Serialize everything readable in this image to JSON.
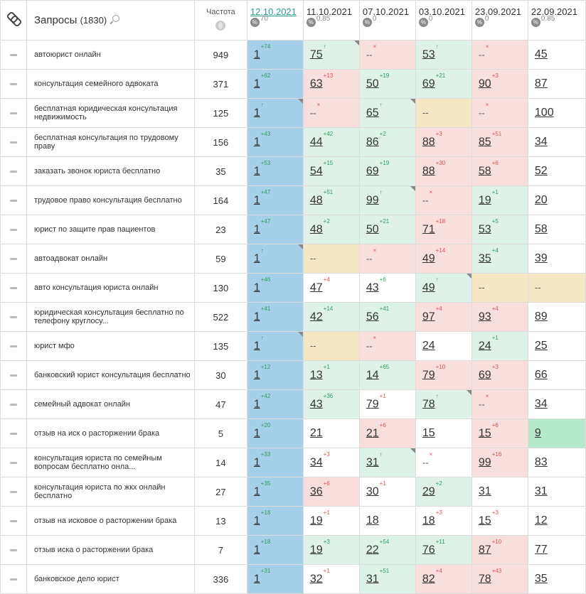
{
  "header": {
    "title": "Запросы",
    "count": "(1830)",
    "freq_label": "Частота",
    "dates": [
      {
        "label": "12.10.2021",
        "sub": "70",
        "active": true
      },
      {
        "label": "11.10.2021",
        "sub": "0.85"
      },
      {
        "label": "07.10.2021",
        "sub": "0"
      },
      {
        "label": "03.10.2021",
        "sub": "0"
      },
      {
        "label": "23.09.2021",
        "sub": "0"
      },
      {
        "label": "22.09.2021",
        "sub": "0.85"
      }
    ]
  },
  "colors": {
    "blue": "#a6cfea",
    "green": "#dff2e8",
    "red": "#f9dede",
    "yellow": "#f5e6c4",
    "dgreen": "#b6e9cc"
  },
  "rows": [
    {
      "query": "автоюрист онлайн",
      "freq": "949",
      "cells": [
        {
          "v": "1",
          "c": "+74",
          "d": "up",
          "bg": "blue"
        },
        {
          "v": "75",
          "c": "↑",
          "d": "up",
          "bg": "green",
          "corner": true
        },
        {
          "v": "--",
          "c": "×",
          "d": "down",
          "bg": "red",
          "nd": true
        },
        {
          "v": "53",
          "c": "↑",
          "d": "up",
          "bg": "green"
        },
        {
          "v": "--",
          "c": "×",
          "d": "down",
          "bg": "red",
          "nd": true
        },
        {
          "v": "45",
          "c": "",
          "bg": "white"
        }
      ]
    },
    {
      "query": "консультация семейного адвоката",
      "freq": "371",
      "cells": [
        {
          "v": "1",
          "c": "+62",
          "d": "up",
          "bg": "blue"
        },
        {
          "v": "63",
          "c": "+13",
          "d": "down",
          "bg": "red"
        },
        {
          "v": "50",
          "c": "+19",
          "d": "up",
          "bg": "green"
        },
        {
          "v": "69",
          "c": "+21",
          "d": "up",
          "bg": "green"
        },
        {
          "v": "90",
          "c": "+3",
          "d": "down",
          "bg": "red"
        },
        {
          "v": "87",
          "c": "",
          "bg": "white"
        }
      ]
    },
    {
      "query": "бесплатная юридическая консультация недвижимость",
      "freq": "125",
      "cells": [
        {
          "v": "1",
          "c": "↑",
          "d": "up",
          "bg": "blue",
          "corner": true
        },
        {
          "v": "--",
          "c": "×",
          "d": "down",
          "bg": "red",
          "nd": true
        },
        {
          "v": "65",
          "c": "↑",
          "d": "up",
          "bg": "green",
          "corner": true
        },
        {
          "v": "--",
          "c": "",
          "bg": "yellow",
          "nd": true
        },
        {
          "v": "--",
          "c": "×",
          "d": "down",
          "bg": "red",
          "nd": true
        },
        {
          "v": "100",
          "c": "",
          "bg": "white"
        }
      ]
    },
    {
      "query": "бесплатная консультация по трудовому праву",
      "freq": "156",
      "cells": [
        {
          "v": "1",
          "c": "+43",
          "d": "up",
          "bg": "blue"
        },
        {
          "v": "44",
          "c": "+42",
          "d": "up",
          "bg": "green"
        },
        {
          "v": "86",
          "c": "+2",
          "d": "up",
          "bg": "green"
        },
        {
          "v": "88",
          "c": "+3",
          "d": "down",
          "bg": "red"
        },
        {
          "v": "85",
          "c": "+51",
          "d": "down",
          "bg": "red"
        },
        {
          "v": "34",
          "c": "",
          "bg": "white"
        }
      ]
    },
    {
      "query": "заказать звонок юриста бесплатно",
      "freq": "35",
      "cells": [
        {
          "v": "1",
          "c": "+53",
          "d": "up",
          "bg": "blue"
        },
        {
          "v": "54",
          "c": "+15",
          "d": "up",
          "bg": "green"
        },
        {
          "v": "69",
          "c": "+19",
          "d": "up",
          "bg": "green"
        },
        {
          "v": "88",
          "c": "+30",
          "d": "down",
          "bg": "red"
        },
        {
          "v": "58",
          "c": "+6",
          "d": "down",
          "bg": "red"
        },
        {
          "v": "52",
          "c": "",
          "bg": "white"
        }
      ]
    },
    {
      "query": "трудовое право консультация бесплатно",
      "freq": "164",
      "cells": [
        {
          "v": "1",
          "c": "+47",
          "d": "up",
          "bg": "blue"
        },
        {
          "v": "48",
          "c": "+51",
          "d": "up",
          "bg": "green"
        },
        {
          "v": "99",
          "c": "↑",
          "d": "up",
          "bg": "green",
          "corner": true
        },
        {
          "v": "--",
          "c": "×",
          "d": "down",
          "bg": "red",
          "nd": true
        },
        {
          "v": "19",
          "c": "+1",
          "d": "up",
          "bg": "green"
        },
        {
          "v": "20",
          "c": "",
          "bg": "white"
        }
      ]
    },
    {
      "query": "юрист по защите прав пациентов",
      "freq": "23",
      "cells": [
        {
          "v": "1",
          "c": "+47",
          "d": "up",
          "bg": "blue"
        },
        {
          "v": "48",
          "c": "+2",
          "d": "up",
          "bg": "green"
        },
        {
          "v": "50",
          "c": "+21",
          "d": "up",
          "bg": "green"
        },
        {
          "v": "71",
          "c": "+18",
          "d": "down",
          "bg": "red"
        },
        {
          "v": "53",
          "c": "+5",
          "d": "up",
          "bg": "green"
        },
        {
          "v": "58",
          "c": "",
          "bg": "white"
        }
      ]
    },
    {
      "query": "автоадвокат онлайн",
      "freq": "59",
      "cells": [
        {
          "v": "1",
          "c": "↑",
          "d": "up",
          "bg": "blue",
          "corner": true
        },
        {
          "v": "--",
          "c": "",
          "bg": "yellow",
          "nd": true
        },
        {
          "v": "--",
          "c": "×",
          "d": "down",
          "bg": "red",
          "nd": true
        },
        {
          "v": "49",
          "c": "+14",
          "d": "down",
          "bg": "red"
        },
        {
          "v": "35",
          "c": "+4",
          "d": "up",
          "bg": "green"
        },
        {
          "v": "39",
          "c": "",
          "bg": "white"
        }
      ]
    },
    {
      "query": "авто консультация юриста онлайн",
      "freq": "130",
      "cells": [
        {
          "v": "1",
          "c": "+46",
          "d": "up",
          "bg": "blue"
        },
        {
          "v": "47",
          "c": "+4",
          "d": "down",
          "bg": "white"
        },
        {
          "v": "43",
          "c": "+6",
          "d": "up",
          "bg": "white"
        },
        {
          "v": "49",
          "c": "↑",
          "d": "up",
          "bg": "green",
          "corner": true
        },
        {
          "v": "--",
          "c": "",
          "bg": "yellow",
          "nd": true
        },
        {
          "v": "--",
          "c": "",
          "bg": "yellow",
          "nd": true
        }
      ]
    },
    {
      "query": "юридическая консультация бесплатно по телефону круглосу...",
      "freq": "522",
      "cells": [
        {
          "v": "1",
          "c": "+41",
          "d": "up",
          "bg": "blue"
        },
        {
          "v": "42",
          "c": "+14",
          "d": "up",
          "bg": "green"
        },
        {
          "v": "56",
          "c": "+41",
          "d": "up",
          "bg": "green"
        },
        {
          "v": "97",
          "c": "+4",
          "d": "down",
          "bg": "red"
        },
        {
          "v": "93",
          "c": "+4",
          "d": "down",
          "bg": "red"
        },
        {
          "v": "89",
          "c": "",
          "bg": "white"
        }
      ]
    },
    {
      "query": "юрист мфо",
      "freq": "135",
      "cells": [
        {
          "v": "1",
          "c": "↑",
          "d": "up",
          "bg": "blue",
          "corner": true
        },
        {
          "v": "--",
          "c": "",
          "bg": "yellow",
          "nd": true
        },
        {
          "v": "--",
          "c": "×",
          "d": "down",
          "bg": "red",
          "nd": true
        },
        {
          "v": "24",
          "c": "",
          "bg": "white"
        },
        {
          "v": "24",
          "c": "+1",
          "d": "up",
          "bg": "green"
        },
        {
          "v": "25",
          "c": "",
          "bg": "white"
        }
      ]
    },
    {
      "query": "банковский юрист консультация бесплатно",
      "freq": "30",
      "cells": [
        {
          "v": "1",
          "c": "+12",
          "d": "up",
          "bg": "blue"
        },
        {
          "v": "13",
          "c": "+1",
          "d": "up",
          "bg": "green"
        },
        {
          "v": "14",
          "c": "+65",
          "d": "up",
          "bg": "green"
        },
        {
          "v": "79",
          "c": "+10",
          "d": "down",
          "bg": "red"
        },
        {
          "v": "69",
          "c": "+3",
          "d": "down",
          "bg": "red"
        },
        {
          "v": "66",
          "c": "",
          "bg": "white"
        }
      ]
    },
    {
      "query": "семейный адвокат онлайн",
      "freq": "47",
      "cells": [
        {
          "v": "1",
          "c": "+42",
          "d": "up",
          "bg": "blue"
        },
        {
          "v": "43",
          "c": "+36",
          "d": "up",
          "bg": "green"
        },
        {
          "v": "79",
          "c": "+1",
          "d": "down",
          "bg": "white"
        },
        {
          "v": "78",
          "c": "↑",
          "d": "up",
          "bg": "green",
          "corner": true
        },
        {
          "v": "--",
          "c": "×",
          "d": "down",
          "bg": "red",
          "nd": true
        },
        {
          "v": "34",
          "c": "",
          "bg": "white"
        }
      ]
    },
    {
      "query": "отзыв на иск о расторжении брака",
      "freq": "5",
      "cells": [
        {
          "v": "1",
          "c": "+20",
          "d": "up",
          "bg": "blue"
        },
        {
          "v": "21",
          "c": "",
          "bg": "white"
        },
        {
          "v": "21",
          "c": "+6",
          "d": "down",
          "bg": "red"
        },
        {
          "v": "15",
          "c": "",
          "bg": "white"
        },
        {
          "v": "15",
          "c": "+6",
          "d": "down",
          "bg": "red"
        },
        {
          "v": "9",
          "c": "",
          "bg": "dgreen"
        }
      ]
    },
    {
      "query": "консультация юриста по семейным вопросам бесплатно онла...",
      "freq": "14",
      "cells": [
        {
          "v": "1",
          "c": "+33",
          "d": "up",
          "bg": "blue"
        },
        {
          "v": "34",
          "c": "+3",
          "d": "down",
          "bg": "white"
        },
        {
          "v": "31",
          "c": "↑",
          "d": "up",
          "bg": "green",
          "corner": true
        },
        {
          "v": "--",
          "c": "×",
          "d": "down",
          "bg": "white",
          "nd": true
        },
        {
          "v": "99",
          "c": "+16",
          "d": "down",
          "bg": "red"
        },
        {
          "v": "83",
          "c": "",
          "bg": "white"
        }
      ]
    },
    {
      "query": "консультация юриста по жкх онлайн бесплатно",
      "freq": "27",
      "cells": [
        {
          "v": "1",
          "c": "+35",
          "d": "up",
          "bg": "blue"
        },
        {
          "v": "36",
          "c": "+6",
          "d": "down",
          "bg": "red"
        },
        {
          "v": "30",
          "c": "+1",
          "d": "down",
          "bg": "white"
        },
        {
          "v": "29",
          "c": "+2",
          "d": "up",
          "bg": "green"
        },
        {
          "v": "31",
          "c": "",
          "bg": "white"
        },
        {
          "v": "31",
          "c": "",
          "bg": "white"
        }
      ]
    },
    {
      "query": "отзыв на исковое о расторжении брака",
      "freq": "13",
      "cells": [
        {
          "v": "1",
          "c": "+18",
          "d": "up",
          "bg": "blue"
        },
        {
          "v": "19",
          "c": "+1",
          "d": "down",
          "bg": "white"
        },
        {
          "v": "18",
          "c": "",
          "bg": "white"
        },
        {
          "v": "18",
          "c": "+3",
          "d": "down",
          "bg": "white"
        },
        {
          "v": "15",
          "c": "+3",
          "d": "down",
          "bg": "white"
        },
        {
          "v": "12",
          "c": "",
          "bg": "white"
        }
      ]
    },
    {
      "query": "отзыв иска о расторжении брака",
      "freq": "7",
      "cells": [
        {
          "v": "1",
          "c": "+18",
          "d": "up",
          "bg": "blue"
        },
        {
          "v": "19",
          "c": "+3",
          "d": "up",
          "bg": "green"
        },
        {
          "v": "22",
          "c": "+54",
          "d": "up",
          "bg": "green"
        },
        {
          "v": "76",
          "c": "+11",
          "d": "up",
          "bg": "green"
        },
        {
          "v": "87",
          "c": "+10",
          "d": "down",
          "bg": "red"
        },
        {
          "v": "77",
          "c": "",
          "bg": "white"
        }
      ]
    },
    {
      "query": "банковское дело юрист",
      "freq": "336",
      "cells": [
        {
          "v": "1",
          "c": "+31",
          "d": "up",
          "bg": "blue"
        },
        {
          "v": "32",
          "c": "+1",
          "d": "down",
          "bg": "white"
        },
        {
          "v": "31",
          "c": "+51",
          "d": "up",
          "bg": "green"
        },
        {
          "v": "82",
          "c": "+4",
          "d": "down",
          "bg": "red"
        },
        {
          "v": "78",
          "c": "+43",
          "d": "down",
          "bg": "red"
        },
        {
          "v": "35",
          "c": "",
          "bg": "white"
        }
      ]
    }
  ]
}
